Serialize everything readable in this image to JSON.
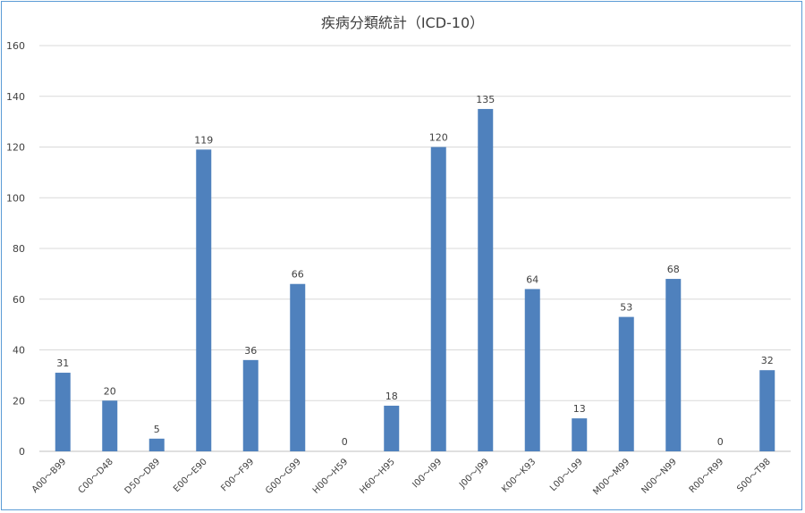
{
  "chart_data": {
    "type": "bar",
    "title": "疾病分類統計（ICD-10）",
    "xlabel": "",
    "ylabel": "",
    "ylim": [
      0,
      160
    ],
    "yticks": [
      0,
      20,
      40,
      60,
      80,
      100,
      120,
      140,
      160
    ],
    "grid": true,
    "categories": [
      "A00～B99",
      "C00～D48",
      "D50～D89",
      "E00～E90",
      "F00～F99",
      "G00～G99",
      "H00～H59",
      "H60～H95",
      "I00～I99",
      "J00～J99",
      "K00～K93",
      "L00～L99",
      "M00～M99",
      "N00～N99",
      "R00～R99",
      "S00～T98"
    ],
    "values": [
      31,
      20,
      5,
      119,
      36,
      66,
      0,
      18,
      120,
      135,
      64,
      13,
      53,
      68,
      0,
      32
    ],
    "data_labels": true
  },
  "colors": {
    "bar": "#4f81bd",
    "grid": "#d9d9d9",
    "text": "#404040",
    "border": "#5b9bd5"
  }
}
